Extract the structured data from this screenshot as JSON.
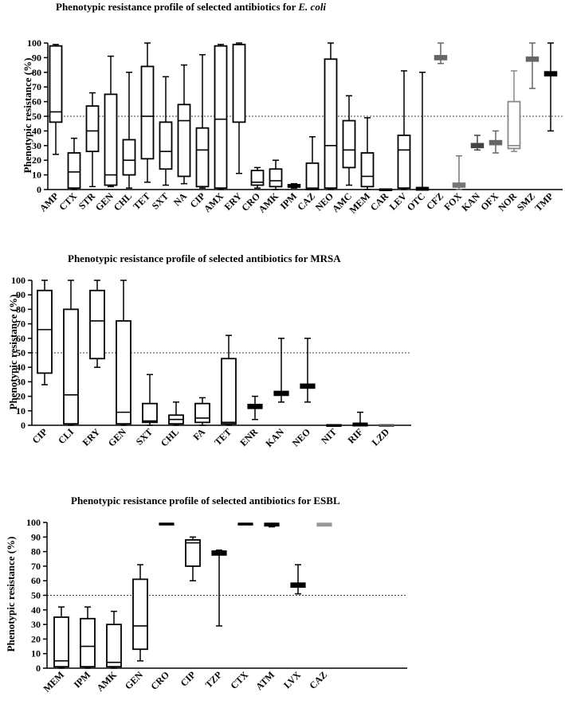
{
  "chart_data": [
    {
      "type": "box",
      "title_pre": "Phenotypic resistance profile of selected antibiotics for ",
      "title_italic": "E. coli",
      "ylabel": "Phenotypic resistance (%)",
      "ylim": [
        0,
        100
      ],
      "yticks": [
        0,
        10,
        20,
        30,
        40,
        50,
        60,
        70,
        80,
        90,
        100
      ],
      "reference_line": 50,
      "boxes": [
        {
          "label": "AMP",
          "min": 24,
          "q1": 46,
          "median": 53,
          "q3": 98,
          "max": 99,
          "color": "#000000"
        },
        {
          "label": "CTX",
          "min": 0,
          "q1": 1,
          "median": 12,
          "q3": 25,
          "max": 35,
          "color": "#000000"
        },
        {
          "label": "STR",
          "min": 2,
          "q1": 26,
          "median": 40,
          "q3": 57,
          "max": 66,
          "color": "#000000"
        },
        {
          "label": "GEN",
          "min": 2,
          "q1": 3,
          "median": 10,
          "q3": 65,
          "max": 91,
          "color": "#000000"
        },
        {
          "label": "CHL",
          "min": 1,
          "q1": 10,
          "median": 20,
          "q3": 34,
          "max": 80,
          "color": "#000000"
        },
        {
          "label": "TET",
          "min": 5,
          "q1": 21,
          "median": 50,
          "q3": 84,
          "max": 100,
          "color": "#000000"
        },
        {
          "label": "SXT",
          "min": 3,
          "q1": 14,
          "median": 26,
          "q3": 46,
          "max": 77,
          "color": "#000000"
        },
        {
          "label": "NA",
          "min": 4,
          "q1": 9,
          "median": 47,
          "q3": 58,
          "max": 85,
          "color": "#000000"
        },
        {
          "label": "CIP",
          "min": 1,
          "q1": 2,
          "median": 27,
          "q3": 42,
          "max": 92,
          "color": "#000000"
        },
        {
          "label": "AMX",
          "min": 0,
          "q1": 1,
          "median": 48,
          "q3": 98,
          "max": 99,
          "color": "#000000"
        },
        {
          "label": "ERY",
          "min": 11,
          "q1": 46,
          "median": 99,
          "q3": 99,
          "max": 100,
          "color": "#000000"
        },
        {
          "label": "CRO",
          "min": 1,
          "q1": 3,
          "median": 5,
          "q3": 13,
          "max": 15,
          "color": "#000000"
        },
        {
          "label": "AMK",
          "min": 0,
          "q1": 2,
          "median": 6,
          "q3": 14,
          "max": 20,
          "color": "#000000"
        },
        {
          "label": "IPM",
          "min": 1,
          "q1": 2,
          "median": 3,
          "q3": 3,
          "max": 4,
          "color": "#000000"
        },
        {
          "label": "CAZ",
          "min": 0,
          "q1": 0,
          "median": 1,
          "q3": 18,
          "max": 36,
          "color": "#000000"
        },
        {
          "label": "NEO",
          "min": 0,
          "q1": 1,
          "median": 30,
          "q3": 89,
          "max": 100,
          "color": "#000000"
        },
        {
          "label": "AMC",
          "min": 3,
          "q1": 15,
          "median": 27,
          "q3": 47,
          "max": 64,
          "color": "#000000"
        },
        {
          "label": "MEM",
          "min": 0,
          "q1": 2,
          "median": 9,
          "q3": 25,
          "max": 49,
          "color": "#000000"
        },
        {
          "label": "CAR",
          "min": 0,
          "q1": 0,
          "median": 0,
          "q3": 0,
          "max": 0,
          "color": "#000000"
        },
        {
          "label": "LEV",
          "min": 0,
          "q1": 1,
          "median": 27,
          "q3": 37,
          "max": 81,
          "color": "#000000"
        },
        {
          "label": "OTC",
          "min": 0,
          "q1": 0,
          "median": 1,
          "q3": 1,
          "max": 80,
          "color": "#000000"
        },
        {
          "label": "CFZ",
          "min": 86,
          "q1": 89,
          "median": 90,
          "q3": 91,
          "max": 100,
          "color": "#666666"
        },
        {
          "label": "FOX",
          "min": 0,
          "q1": 2,
          "median": 3,
          "q3": 4,
          "max": 23,
          "color": "#777777"
        },
        {
          "label": "KAN",
          "min": 27,
          "q1": 29,
          "median": 30,
          "q3": 31,
          "max": 37,
          "color": "#444444"
        },
        {
          "label": "OFX",
          "min": 25,
          "q1": 31,
          "median": 32,
          "q3": 33,
          "max": 40,
          "color": "#666666"
        },
        {
          "label": "NOR",
          "min": 26,
          "q1": 28,
          "median": 30,
          "q3": 60,
          "max": 81,
          "color": "#888888"
        },
        {
          "label": "SMZ",
          "min": 69,
          "q1": 88,
          "median": 89,
          "q3": 90,
          "max": 100,
          "color": "#666666"
        },
        {
          "label": "TMP",
          "min": 40,
          "q1": 78,
          "median": 79,
          "q3": 80,
          "max": 100,
          "color": "#000000"
        }
      ]
    },
    {
      "type": "box",
      "title_pre": "Phenotypic resistance profile of selected antibiotics for MRSA",
      "title_italic": "",
      "ylabel": "Phenotypic resistance (%)",
      "ylim": [
        0,
        100
      ],
      "yticks": [
        0,
        10,
        20,
        30,
        40,
        50,
        60,
        70,
        80,
        90,
        100
      ],
      "reference_line": 50,
      "boxes": [
        {
          "label": "CIP",
          "min": 28,
          "q1": 36,
          "median": 66,
          "q3": 93,
          "max": 100,
          "color": "#000000"
        },
        {
          "label": "CLI",
          "min": 0,
          "q1": 1,
          "median": 21,
          "q3": 80,
          "max": 100,
          "color": "#000000"
        },
        {
          "label": "ERY",
          "min": 40,
          "q1": 46,
          "median": 72,
          "q3": 93,
          "max": 100,
          "color": "#000000"
        },
        {
          "label": "GEN",
          "min": 0,
          "q1": 1,
          "median": 9,
          "q3": 72,
          "max": 100,
          "color": "#000000"
        },
        {
          "label": "SXT",
          "min": 0,
          "q1": 2,
          "median": 3,
          "q3": 15,
          "max": 35,
          "color": "#000000"
        },
        {
          "label": "CHL",
          "min": 0,
          "q1": 1,
          "median": 4,
          "q3": 7,
          "max": 16,
          "color": "#000000"
        },
        {
          "label": "FA",
          "min": 0,
          "q1": 2,
          "median": 5,
          "q3": 15,
          "max": 19,
          "color": "#000000"
        },
        {
          "label": "TET",
          "min": 0,
          "q1": 1,
          "median": 2,
          "q3": 46,
          "max": 62,
          "color": "#000000"
        },
        {
          "label": "ENR",
          "min": 4,
          "q1": 12,
          "median": 13,
          "q3": 14,
          "max": 20,
          "color": "#000000"
        },
        {
          "label": "KAN",
          "min": 16,
          "q1": 21,
          "median": 22,
          "q3": 23,
          "max": 60,
          "color": "#000000"
        },
        {
          "label": "NEO",
          "min": 16,
          "q1": 26,
          "median": 27,
          "q3": 28,
          "max": 60,
          "color": "#000000"
        },
        {
          "label": "NIT",
          "min": 0,
          "q1": 0,
          "median": 0,
          "q3": 0,
          "max": 0,
          "color": "#000000"
        },
        {
          "label": "RIF",
          "min": 0,
          "q1": 0,
          "median": 1,
          "q3": 1,
          "max": 9,
          "color": "#000000"
        },
        {
          "label": "LZD",
          "min": 0,
          "q1": 0,
          "median": 0,
          "q3": 0,
          "max": 0,
          "color": "#555555"
        }
      ]
    },
    {
      "type": "box",
      "title_pre": "Phenotypic resistance profile of selected antibiotics for ESBL",
      "title_italic": "",
      "ylabel": "Phenotypic resistance (%)",
      "ylim": [
        0,
        100
      ],
      "yticks": [
        0,
        10,
        20,
        30,
        40,
        50,
        60,
        70,
        80,
        90,
        100
      ],
      "reference_line": 50,
      "boxes": [
        {
          "label": "MEM",
          "min": 0,
          "q1": 1,
          "median": 5,
          "q3": 35,
          "max": 42,
          "color": "#000000"
        },
        {
          "label": "IPM",
          "min": 0,
          "q1": 1,
          "median": 15,
          "q3": 34,
          "max": 42,
          "color": "#000000"
        },
        {
          "label": "AMK",
          "min": 0,
          "q1": 1,
          "median": 4,
          "q3": 30,
          "max": 39,
          "color": "#000000"
        },
        {
          "label": "GEN",
          "min": 5,
          "q1": 13,
          "median": 29,
          "q3": 61,
          "max": 71,
          "color": "#000000"
        },
        {
          "label": "CRO",
          "min": 99,
          "q1": 99,
          "median": 99,
          "q3": 99,
          "max": 99,
          "color": "#000000"
        },
        {
          "label": "CIP",
          "min": 60,
          "q1": 70,
          "median": 86,
          "q3": 88,
          "max": 90,
          "color": "#000000"
        },
        {
          "label": "TZP",
          "min": 29,
          "q1": 78,
          "median": 79,
          "q3": 80,
          "max": 81,
          "color": "#000000"
        },
        {
          "label": "CTX",
          "min": 99,
          "q1": 99,
          "median": 99,
          "q3": 99,
          "max": 99,
          "color": "#000000"
        },
        {
          "label": "ATM",
          "min": 97,
          "q1": 98,
          "median": 99,
          "q3": 99,
          "max": 99,
          "color": "#000000"
        },
        {
          "label": "LVX",
          "min": 51,
          "q1": 56,
          "median": 57,
          "q3": 58,
          "max": 71,
          "color": "#000000"
        },
        {
          "label": "CAZ",
          "min": 98,
          "q1": 98,
          "median": 99,
          "q3": 99,
          "max": 99,
          "color": "#999999"
        }
      ]
    }
  ]
}
